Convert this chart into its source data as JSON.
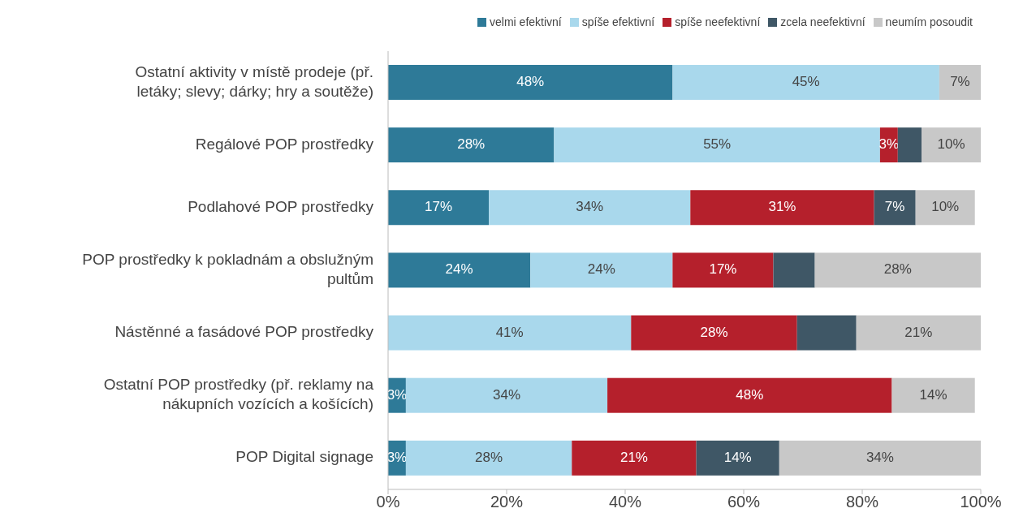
{
  "chart_data": {
    "type": "bar",
    "orientation": "horizontal",
    "stacked": true,
    "legend": "top right",
    "grid": false,
    "categories": [
      "Ostatní aktivity v místě prodeje (př. letáky; slevy; dárky; hry a soutěže)",
      "Regálové POP prostředky",
      "Podlahové POP prostředky",
      "POP prostředky k pokladnám a obslužným pultům",
      "Nástěnné a fasádové POP prostředky",
      "Ostatní POP prostředky (př. reklamy na nákupních vozících a košících)",
      "POP Digital signage"
    ],
    "xlim": [
      0,
      100
    ],
    "xticks": [
      {
        "value": 0,
        "label": "0%"
      },
      {
        "value": 20,
        "label": "20%"
      },
      {
        "value": 40,
        "label": "40%"
      },
      {
        "value": 60,
        "label": "60%"
      },
      {
        "value": 80,
        "label": "80%"
      },
      {
        "value": 100,
        "label": "100%"
      }
    ],
    "series": [
      {
        "name": "velmi efektivní",
        "color": "#2e7a98",
        "values": [
          48,
          28,
          17,
          24,
          0,
          3,
          3
        ],
        "value_labels": [
          "48%",
          "28%",
          "17%",
          "24%",
          null,
          "3%",
          "3%"
        ]
      },
      {
        "name": "spíše efektivní",
        "color": "#a9d8ec",
        "values": [
          45,
          55,
          34,
          24,
          41,
          34,
          28
        ],
        "value_labels": [
          "45%",
          "55%",
          "34%",
          "24%",
          "41%",
          "34%",
          "28%"
        ]
      },
      {
        "name": "spíše neefektivní",
        "color": "#b5202c",
        "values": [
          0,
          3,
          31,
          17,
          28,
          48,
          21
        ],
        "value_labels": [
          null,
          "3%",
          "31%",
          "17%",
          "28%",
          "48%",
          "21%"
        ]
      },
      {
        "name": "zcela neefektivní",
        "color": "#3f5766",
        "values": [
          0,
          4,
          7,
          7,
          10,
          0,
          14
        ],
        "value_labels": [
          null,
          null,
          "7%",
          null,
          null,
          null,
          "14%"
        ]
      },
      {
        "name": "neumím posoudit",
        "color": "#c8c8c8",
        "values": [
          7,
          10,
          10,
          28,
          21,
          14,
          34
        ],
        "value_labels": [
          "7%",
          "10%",
          "10%",
          "28%",
          "21%",
          "14%",
          "34%"
        ]
      }
    ]
  }
}
